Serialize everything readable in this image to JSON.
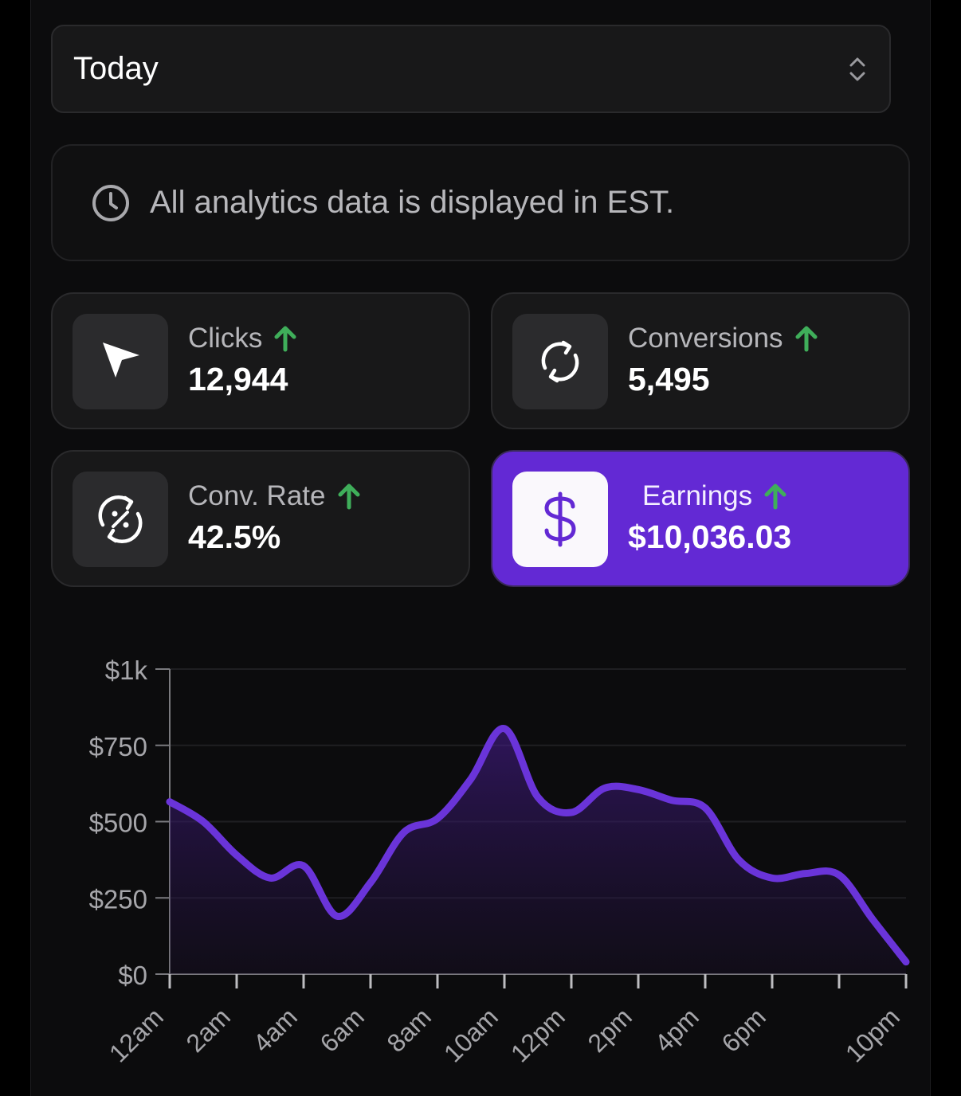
{
  "range_select": {
    "value": "Today"
  },
  "notice": {
    "text": "All analytics data is displayed in EST."
  },
  "stats": {
    "clicks": {
      "label": "Clicks",
      "value": "12,944"
    },
    "conversions": {
      "label": "Conversions",
      "value": "5,495"
    },
    "conv_rate": {
      "label": "Conv. Rate",
      "value": "42.5%"
    },
    "earnings": {
      "label": "Earnings",
      "value": "$10,036.03"
    }
  },
  "colors": {
    "accent": "#6329d4",
    "up_arrow": "#3fae5a",
    "line": "#6a34d9"
  },
  "chart_data": {
    "type": "area",
    "ylim": [
      0,
      1000
    ],
    "yticks": [
      "$0",
      "$250",
      "$500",
      "$750",
      "$1k"
    ],
    "xticks": [
      "12am",
      "2am",
      "4am",
      "6am",
      "8am",
      "10am",
      "12pm",
      "2pm",
      "4pm",
      "6pm",
      "10pm"
    ],
    "x": [
      0,
      1,
      2,
      3,
      4,
      5,
      6,
      7,
      8,
      9,
      10,
      11,
      12,
      13,
      14,
      15,
      16,
      17,
      18,
      19,
      20,
      21,
      22
    ],
    "values": [
      565,
      500,
      390,
      315,
      355,
      190,
      300,
      465,
      510,
      640,
      805,
      580,
      530,
      610,
      605,
      570,
      545,
      375,
      315,
      330,
      325,
      180,
      40
    ]
  }
}
